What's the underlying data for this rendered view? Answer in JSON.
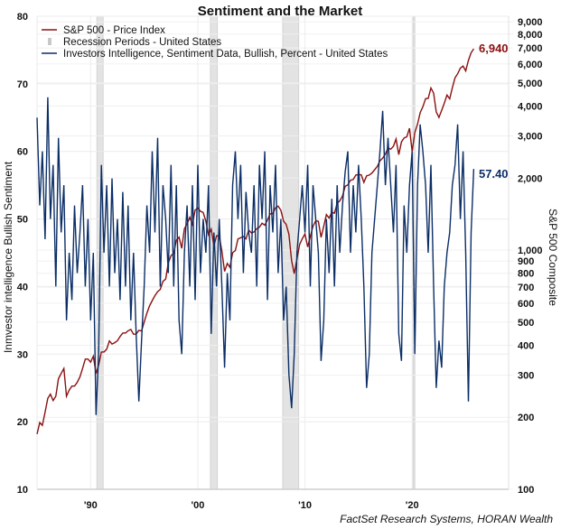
{
  "chart_data": {
    "type": "line",
    "title": "Sentiment and the Market",
    "source": "FactSet Research Systems, HORAN Wealth",
    "xlim": [
      1985,
      2029
    ],
    "x_ticks": [
      {
        "year": 1990,
        "label": "'90"
      },
      {
        "year": 2000,
        "label": "'00"
      },
      {
        "year": 2010,
        "label": "'10"
      },
      {
        "year": 2020,
        "label": "'20"
      }
    ],
    "left_axis": {
      "label": "Inmvestor intelligence Bullish Sentiment",
      "ylim": [
        10,
        80
      ],
      "ticks": [
        "10",
        "20",
        "30",
        "40",
        "50",
        "60",
        "70",
        "80"
      ]
    },
    "right_axis": {
      "label": "S&P 500 Composite",
      "scale": "log",
      "ylim": [
        100,
        9500
      ],
      "ticks": [
        {
          "value": 100,
          "label": "100"
        },
        {
          "value": 200,
          "label": "200"
        },
        {
          "value": 300,
          "label": "300"
        },
        {
          "value": 400,
          "label": "400"
        },
        {
          "value": 500,
          "label": "500"
        },
        {
          "value": 600,
          "label": "600"
        },
        {
          "value": 700,
          "label": "700"
        },
        {
          "value": 800,
          "label": "800"
        },
        {
          "value": 900,
          "label": "900"
        },
        {
          "value": 1000,
          "label": "1,000"
        },
        {
          "value": 2000,
          "label": "2,000"
        },
        {
          "value": 3000,
          "label": "3,000"
        },
        {
          "value": 4000,
          "label": "4,000"
        },
        {
          "value": 5000,
          "label": "5,000"
        },
        {
          "value": 6000,
          "label": "6,000"
        },
        {
          "value": 7000,
          "label": "7,000"
        },
        {
          "value": 8000,
          "label": "8,000"
        },
        {
          "value": 9000,
          "label": "9,000"
        }
      ]
    },
    "grid": true,
    "legend_position": "top-left",
    "x_start": 1985,
    "x_step": 0.25,
    "series": [
      {
        "name": "S&P 500 - Price Index",
        "axis": "right",
        "color": "#8b1010",
        "end_label": "6,940",
        "values": [
          170,
          190,
          185,
          210,
          240,
          250,
          235,
          245,
          290,
          305,
          320,
          245,
          260,
          270,
          270,
          280,
          295,
          320,
          350,
          350,
          340,
          360,
          305,
          330,
          375,
          375,
          385,
          417,
          405,
          410,
          418,
          435,
          450,
          450,
          460,
          466,
          445,
          445,
          462,
          459,
          500,
          545,
          585,
          615,
          645,
          670,
          685,
          740,
          757,
          885,
          947,
          970,
          1100,
          1133,
          1017,
          1229,
          1286,
          1372,
          1282,
          1469,
          1498,
          1454,
          1436,
          1320,
          1160,
          1224,
          1040,
          1148,
          1147,
          990,
          815,
          880,
          848,
          975,
          996,
          1112,
          1126,
          1140,
          1114,
          1212,
          1180,
          1191,
          1228,
          1248,
          1295,
          1270,
          1335,
          1418,
          1420,
          1503,
          1527,
          1468,
          1322,
          1280,
          1166,
          903,
          797,
          919,
          1057,
          1115,
          1169,
          1030,
          1141,
          1258,
          1326,
          1320,
          1131,
          1258,
          1408,
          1362,
          1440,
          1426,
          1569,
          1606,
          1682,
          1848,
          1872,
          1960,
          1972,
          2059,
          2068,
          2063,
          1920,
          2044,
          2060,
          2099,
          2168,
          2239,
          2363,
          2423,
          2519,
          2674,
          2640,
          2718,
          2914,
          2507,
          2834,
          2942,
          2977,
          3231,
          2585,
          3100,
          3363,
          3756,
          3973,
          4298,
          4308,
          4766,
          4530,
          3785,
          3586,
          3840,
          4109,
          4450,
          4288,
          4770,
          5254,
          5460,
          5762,
          5882,
          5612,
          6205,
          6688,
          6940
        ]
      },
      {
        "name": "Investors Intelligence, Sentiment Data, Bullish, Percent - United States",
        "axis": "left",
        "color": "#0b2e66",
        "end_label": "57.40",
        "values": [
          65,
          52,
          60,
          47,
          68,
          50,
          58,
          40,
          62,
          48,
          55,
          35,
          45,
          38,
          52,
          42,
          48,
          55,
          40,
          50,
          35,
          45,
          21,
          30,
          58,
          45,
          55,
          40,
          56,
          42,
          50,
          38,
          54,
          40,
          52,
          35,
          45,
          33,
          23,
          32,
          40,
          52,
          45,
          60,
          48,
          62,
          40,
          55,
          50,
          42,
          58,
          40,
          55,
          35,
          30,
          45,
          52,
          40,
          55,
          38,
          58,
          42,
          50,
          45,
          55,
          33,
          48,
          40,
          50,
          40,
          28,
          42,
          35,
          55,
          60,
          50,
          58,
          42,
          54,
          48,
          45,
          55,
          40,
          58,
          50,
          60,
          38,
          55,
          48,
          58,
          42,
          50,
          35,
          40,
          27,
          22,
          30,
          45,
          50,
          55,
          48,
          58,
          40,
          55,
          50,
          45,
          29,
          35,
          50,
          42,
          53,
          40,
          55,
          45,
          52,
          57,
          60,
          45,
          55,
          48,
          58,
          50,
          40,
          25,
          30,
          45,
          50,
          55,
          60,
          66,
          55,
          62,
          55,
          48,
          58,
          33,
          29,
          52,
          45,
          55,
          60,
          30,
          55,
          64,
          60,
          55,
          45,
          58,
          40,
          25,
          32,
          28,
          40,
          45,
          48,
          55,
          58,
          64,
          50,
          60,
          45,
          23,
          48,
          57.4
        ]
      }
    ],
    "recessions": {
      "name": "Recession Periods - United States",
      "color": "#d9d9d9",
      "periods": [
        [
          1990.58,
          1991.17
        ],
        [
          2001.17,
          2001.83
        ],
        [
          2007.92,
          2009.42
        ],
        [
          2020.08,
          2020.25
        ]
      ]
    }
  }
}
